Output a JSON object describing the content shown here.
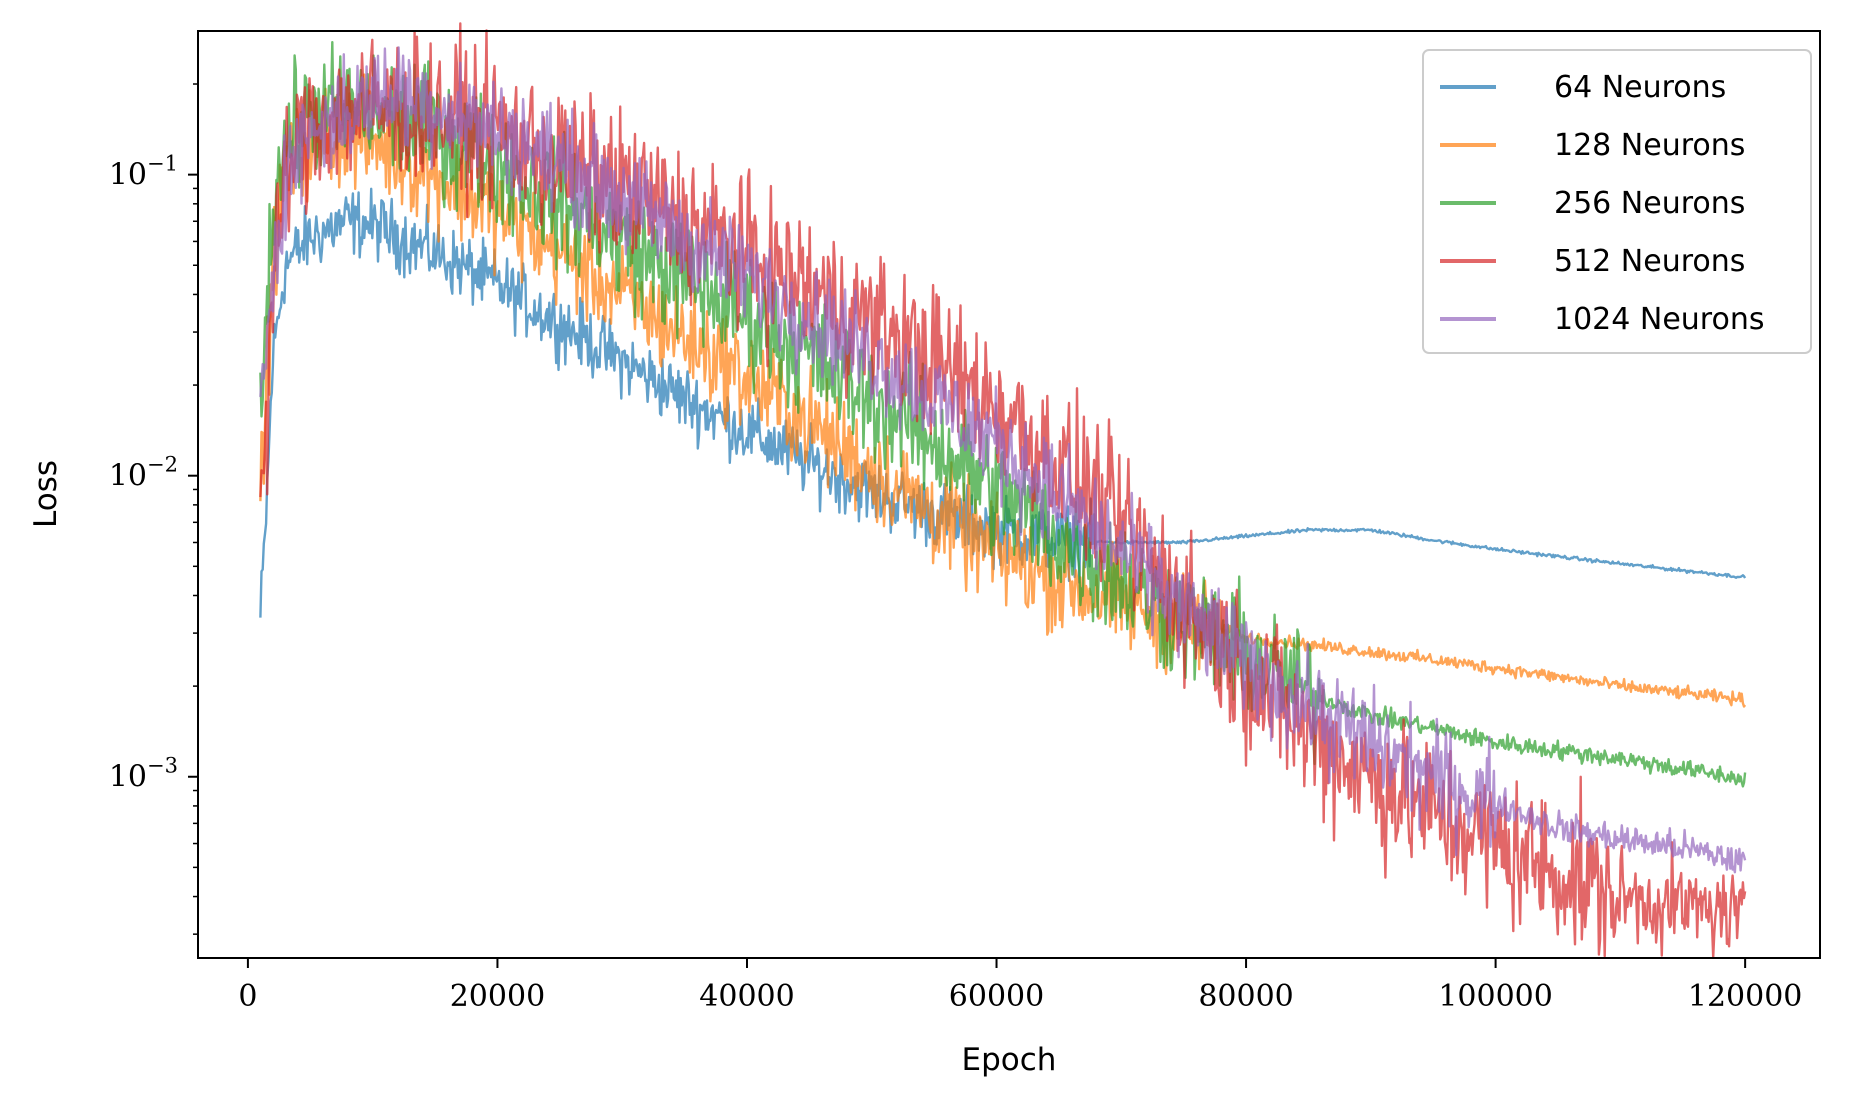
{
  "chart_data": {
    "type": "line",
    "title": "",
    "xlabel": "Epoch",
    "ylabel": "Loss",
    "yscale": "log",
    "xlim": [
      -4000,
      126000
    ],
    "ylim": [
      0.00025,
      0.3
    ],
    "x_ticks": [
      0,
      20000,
      40000,
      60000,
      80000,
      100000,
      120000
    ],
    "x_tick_labels": [
      "0",
      "20000",
      "40000",
      "60000",
      "80000",
      "100000",
      "120000"
    ],
    "y_ticks": [
      0.1,
      0.01,
      0.001
    ],
    "y_tick_labels": [
      {
        "base": "10",
        "exp": "−1"
      },
      {
        "base": "10",
        "exp": "−2"
      },
      {
        "base": "10",
        "exp": "−3"
      }
    ],
    "legend_position": "top-right",
    "grid": false,
    "series": [
      {
        "name": "64 Neurons",
        "color": "#1f77b4",
        "noise": 0.11,
        "points": [
          [
            1000,
            0.0033
          ],
          [
            1500,
            0.008
          ],
          [
            2000,
            0.025
          ],
          [
            3000,
            0.05
          ],
          [
            5000,
            0.062
          ],
          [
            8000,
            0.07
          ],
          [
            10000,
            0.068
          ],
          [
            15000,
            0.055
          ],
          [
            20000,
            0.043
          ],
          [
            25000,
            0.032
          ],
          [
            30000,
            0.024
          ],
          [
            35000,
            0.018
          ],
          [
            40000,
            0.014
          ],
          [
            45000,
            0.011
          ],
          [
            50000,
            0.0088
          ],
          [
            55000,
            0.0075
          ],
          [
            60000,
            0.0066
          ],
          [
            65000,
            0.0061
          ],
          [
            70000,
            0.006
          ],
          [
            75000,
            0.006
          ],
          [
            80000,
            0.0063
          ],
          [
            85000,
            0.0066
          ],
          [
            90000,
            0.0066
          ],
          [
            95000,
            0.0061
          ],
          [
            100000,
            0.0057
          ],
          [
            110000,
            0.0051
          ],
          [
            120000,
            0.0046
          ]
        ],
        "label": "64 Neurons"
      },
      {
        "name": "128 Neurons",
        "color": "#ff7f0e",
        "noise": 0.17,
        "points": [
          [
            1000,
            0.009
          ],
          [
            1500,
            0.02
          ],
          [
            2000,
            0.05
          ],
          [
            3000,
            0.1
          ],
          [
            5000,
            0.13
          ],
          [
            7000,
            0.14
          ],
          [
            10000,
            0.13
          ],
          [
            15000,
            0.1
          ],
          [
            20000,
            0.075
          ],
          [
            25000,
            0.055
          ],
          [
            30000,
            0.04
          ],
          [
            35000,
            0.029
          ],
          [
            40000,
            0.021
          ],
          [
            45000,
            0.015
          ],
          [
            50000,
            0.0105
          ],
          [
            55000,
            0.0075
          ],
          [
            60000,
            0.0055
          ],
          [
            65000,
            0.0045
          ],
          [
            70000,
            0.0038
          ],
          [
            75000,
            0.0033
          ],
          [
            80000,
            0.0029
          ],
          [
            90000,
            0.0026
          ],
          [
            100000,
            0.0023
          ],
          [
            110000,
            0.002
          ],
          [
            120000,
            0.0018
          ]
        ],
        "label": "128 Neurons"
      },
      {
        "name": "256 Neurons",
        "color": "#2ca02c",
        "noise": 0.2,
        "points": [
          [
            1000,
            0.015
          ],
          [
            1500,
            0.04
          ],
          [
            2000,
            0.08
          ],
          [
            3000,
            0.13
          ],
          [
            5000,
            0.16
          ],
          [
            8000,
            0.165
          ],
          [
            10000,
            0.16
          ],
          [
            15000,
            0.14
          ],
          [
            20000,
            0.11
          ],
          [
            25000,
            0.08
          ],
          [
            30000,
            0.06
          ],
          [
            35000,
            0.045
          ],
          [
            40000,
            0.034
          ],
          [
            45000,
            0.025
          ],
          [
            50000,
            0.018
          ],
          [
            55000,
            0.013
          ],
          [
            60000,
            0.0088
          ],
          [
            65000,
            0.0062
          ],
          [
            70000,
            0.0045
          ],
          [
            75000,
            0.0033
          ],
          [
            80000,
            0.0025
          ],
          [
            85000,
            0.0019
          ],
          [
            90000,
            0.0016
          ],
          [
            95000,
            0.00145
          ],
          [
            100000,
            0.0013
          ],
          [
            110000,
            0.00115
          ],
          [
            120000,
            0.00098
          ]
        ],
        "label": "256 Neurons"
      },
      {
        "name": "512 Neurons",
        "color": "#d62728",
        "noise": 0.24,
        "points": [
          [
            1000,
            0.008
          ],
          [
            1500,
            0.015
          ],
          [
            2000,
            0.04
          ],
          [
            3000,
            0.1
          ],
          [
            5000,
            0.15
          ],
          [
            8000,
            0.165
          ],
          [
            10000,
            0.17
          ],
          [
            15000,
            0.16
          ],
          [
            20000,
            0.14
          ],
          [
            25000,
            0.11
          ],
          [
            30000,
            0.09
          ],
          [
            35000,
            0.07
          ],
          [
            40000,
            0.054
          ],
          [
            45000,
            0.042
          ],
          [
            50000,
            0.032
          ],
          [
            55000,
            0.024
          ],
          [
            60000,
            0.017
          ],
          [
            65000,
            0.011
          ],
          [
            70000,
            0.0068
          ],
          [
            75000,
            0.0038
          ],
          [
            80000,
            0.0022
          ],
          [
            85000,
            0.0014
          ],
          [
            90000,
            0.001
          ],
          [
            95000,
            0.00075
          ],
          [
            100000,
            0.0006
          ],
          [
            105000,
            0.00048
          ],
          [
            110000,
            0.0004
          ],
          [
            115000,
            0.00037
          ],
          [
            120000,
            0.00035
          ]
        ],
        "label": "512 Neurons"
      },
      {
        "name": "1024 Neurons",
        "color": "#9467bd",
        "noise": 0.17,
        "points": [
          [
            1000,
            0.015
          ],
          [
            1500,
            0.03
          ],
          [
            2000,
            0.05
          ],
          [
            3000,
            0.1
          ],
          [
            5000,
            0.14
          ],
          [
            8000,
            0.16
          ],
          [
            10000,
            0.18
          ],
          [
            12000,
            0.19
          ],
          [
            15000,
            0.17
          ],
          [
            20000,
            0.14
          ],
          [
            25000,
            0.11
          ],
          [
            30000,
            0.083
          ],
          [
            35000,
            0.062
          ],
          [
            40000,
            0.046
          ],
          [
            45000,
            0.034
          ],
          [
            50000,
            0.025
          ],
          [
            55000,
            0.018
          ],
          [
            60000,
            0.0128
          ],
          [
            65000,
            0.0085
          ],
          [
            70000,
            0.0056
          ],
          [
            75000,
            0.0036
          ],
          [
            80000,
            0.0024
          ],
          [
            85000,
            0.0017
          ],
          [
            90000,
            0.0013
          ],
          [
            95000,
            0.001
          ],
          [
            100000,
            0.00082
          ],
          [
            105000,
            0.00068
          ],
          [
            110000,
            0.00062
          ],
          [
            115000,
            0.00058
          ],
          [
            120000,
            0.00052
          ]
        ],
        "label": "1024 Neurons"
      }
    ]
  }
}
